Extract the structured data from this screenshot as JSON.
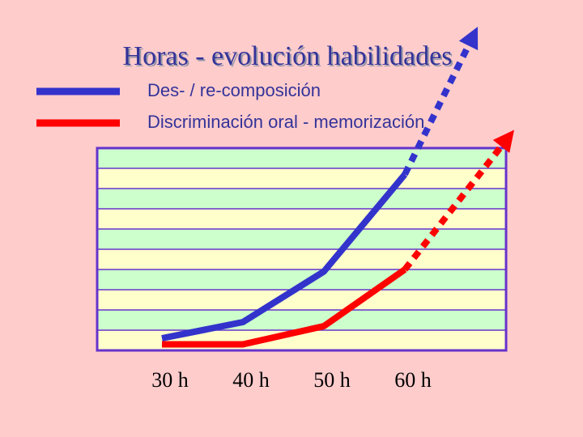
{
  "chart_data": {
    "type": "line",
    "title": "Horas - evolución habilidades",
    "xlim": [
      22,
      72.5
    ],
    "ylim": [
      0,
      10
    ],
    "xticks": [
      {
        "value": 30,
        "label": "30 h"
      },
      {
        "value": 40,
        "label": "40 h"
      },
      {
        "value": 50,
        "label": "50 h"
      },
      {
        "value": 60,
        "label": "60 h"
      }
    ],
    "yticks": [
      0,
      1,
      2,
      3,
      4,
      5,
      6,
      7,
      8,
      9,
      10
    ],
    "grid": true,
    "series": [
      {
        "name": "Des- / re-composición",
        "color": "#3333cc",
        "x": [
          30,
          40,
          50,
          60,
          69
        ],
        "values": [
          0.6,
          1.4,
          3.9,
          8.7,
          16
        ]
      },
      {
        "name": "Discriminación oral - memorización",
        "color": "#ff0000",
        "x": [
          30,
          40,
          50,
          60,
          73.5
        ],
        "values": [
          0.3,
          0.3,
          1.2,
          4.0,
          10.9
        ]
      }
    ],
    "dashed_from_index": 3
  }
}
